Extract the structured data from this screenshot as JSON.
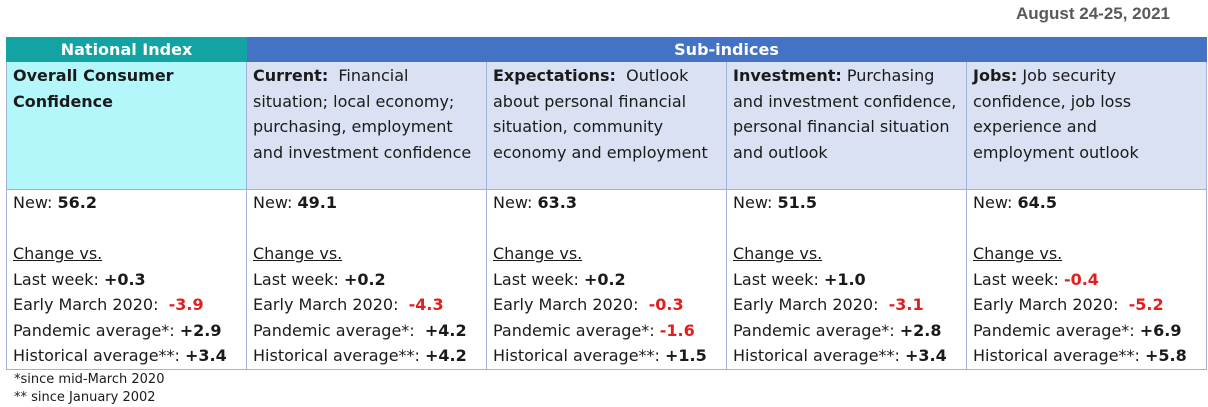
{
  "date": "August 24-25, 2021",
  "header": {
    "national": "National Index",
    "sub": "Sub-indices"
  },
  "columns": [
    {
      "title": "Overall Consumer Confidence",
      "desc": "",
      "new_label": "New: ",
      "new_value": "56.2",
      "changes": [
        {
          "label": "Last week: ",
          "value": "+0.3",
          "negative": false
        },
        {
          "label": "Early March 2020:  ",
          "value": "-3.9",
          "negative": true
        },
        {
          "label": "Pandemic average*: ",
          "value": "+2.9",
          "negative": false
        },
        {
          "label": "Historical average**: ",
          "value": "+3.4",
          "negative": false
        }
      ]
    },
    {
      "title": "Current",
      "desc": "Financial situation; local economy; purchasing, employment and investment confidence",
      "new_label": "New: ",
      "new_value": "49.1",
      "changes": [
        {
          "label": "Last week: ",
          "value": "+0.2",
          "negative": false
        },
        {
          "label": "Early March 2020:  ",
          "value": "-4.3",
          "negative": true
        },
        {
          "label": "Pandemic average*:  ",
          "value": "+4.2",
          "negative": false
        },
        {
          "label": "Historical average**: ",
          "value": "+4.2",
          "negative": false
        }
      ]
    },
    {
      "title": "Expectations",
      "desc": "Outlook about personal financial situation, community economy and employment",
      "new_label": "New: ",
      "new_value": "63.3",
      "changes": [
        {
          "label": "Last week: ",
          "value": "+0.2",
          "negative": false
        },
        {
          "label": "Early March 2020:  ",
          "value": "-0.3",
          "negative": true
        },
        {
          "label": "Pandemic average*: ",
          "value": "-1.6",
          "negative": true
        },
        {
          "label": "Historical average**: ",
          "value": "+1.5",
          "negative": false
        }
      ]
    },
    {
      "title": "Investment",
      "desc": "Purchasing and investment confidence, personal financial situation and outlook",
      "new_label": "New: ",
      "new_value": "51.5",
      "changes": [
        {
          "label": "Last week: ",
          "value": "+1.0",
          "negative": false
        },
        {
          "label": "Early March 2020:  ",
          "value": "-3.1",
          "negative": true
        },
        {
          "label": "Pandemic average*: ",
          "value": "+2.8",
          "negative": false
        },
        {
          "label": "Historical average**: ",
          "value": "+3.4",
          "negative": false
        }
      ]
    },
    {
      "title": "Jobs",
      "desc": "Job security confidence, job loss experience and employment outlook",
      "new_label": "New: ",
      "new_value": "64.5",
      "changes": [
        {
          "label": "Last week: ",
          "value": "-0.4",
          "negative": true
        },
        {
          "label": "Early March 2020:  ",
          "value": "-5.2",
          "negative": true
        },
        {
          "label": "Pandemic average*: ",
          "value": "+6.9",
          "negative": false
        },
        {
          "label": "Historical average**: ",
          "value": "+5.8",
          "negative": false
        }
      ]
    }
  ],
  "change_heading": "Change vs.",
  "footnotes": [
    "*since mid-March 2020",
    "** since January 2002"
  ]
}
